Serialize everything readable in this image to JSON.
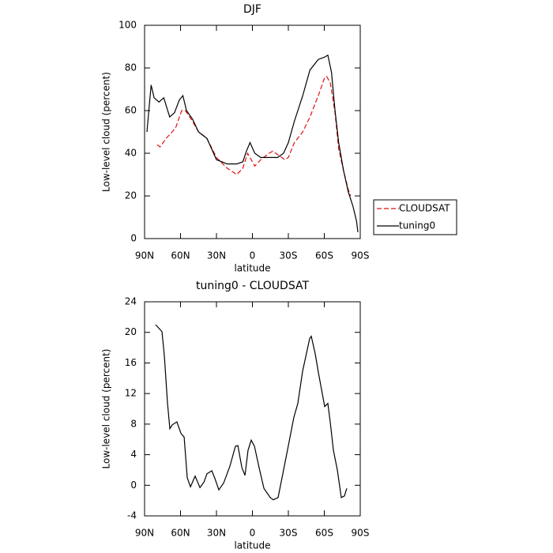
{
  "chart_data": [
    {
      "type": "line",
      "title": "DJF",
      "xlabel": "latitude",
      "ylabel": "Low-level cloud (percent)",
      "xlim": [
        90,
        -90
      ],
      "xticks": [
        {
          "value": 90,
          "label": "90N"
        },
        {
          "value": 60,
          "label": "60N"
        },
        {
          "value": 30,
          "label": "30N"
        },
        0,
        {
          "value": -30,
          "label": "30S"
        },
        {
          "value": -60,
          "label": "60S"
        },
        {
          "value": -90,
          "label": "90S"
        }
      ],
      "ylim": [
        0,
        100
      ],
      "yticks": [
        0,
        20,
        40,
        60,
        80,
        100
      ],
      "legend": "outside-right",
      "series": [
        {
          "name": "CLOUDSAT",
          "color": "#e01010",
          "dashed": true,
          "x": [
            79.5,
            77,
            72,
            67,
            64,
            59,
            56,
            50,
            45,
            38,
            30,
            21,
            13,
            8,
            4,
            1,
            -2,
            -7,
            -14,
            -17,
            -22,
            -27,
            -30,
            -35,
            -42,
            -48,
            -55,
            -60,
            -62,
            -65,
            -69,
            -72,
            -76,
            -80,
            -82
          ],
          "values": [
            44,
            43,
            47,
            50,
            52,
            60,
            60,
            55,
            50,
            47,
            38,
            33,
            30,
            33,
            40,
            37,
            34,
            37,
            40,
            41,
            39,
            37,
            38,
            45,
            50,
            57,
            67,
            75,
            76,
            73,
            59,
            42,
            32,
            23,
            20
          ]
        },
        {
          "name": "tuning0",
          "color": "#000000",
          "dashed": false,
          "x": [
            88,
            84.5,
            82,
            78,
            74,
            69,
            65,
            61,
            58,
            55,
            50,
            45,
            38,
            30,
            21,
            13,
            8,
            5,
            2,
            -2,
            -7,
            -14,
            -21,
            -26,
            -30,
            -35,
            -42,
            -48,
            -55,
            -60,
            -63,
            -66,
            -69,
            -72,
            -76,
            -80,
            -84,
            -87,
            -88
          ],
          "values": [
            50,
            72,
            66,
            64,
            66,
            57,
            59,
            65,
            67,
            60,
            56,
            50,
            47,
            37,
            35,
            35,
            36,
            41,
            45,
            40,
            38,
            38,
            38,
            40,
            45,
            55,
            67,
            79,
            84,
            85,
            86,
            78,
            60,
            45,
            32,
            22,
            15,
            8,
            3
          ]
        }
      ]
    },
    {
      "type": "line",
      "title": "tuning0 - CLOUDSAT",
      "xlabel": "latitude",
      "ylabel": "Low-level cloud (percent)",
      "xlim": [
        90,
        -90
      ],
      "xticks": [
        {
          "value": 90,
          "label": "90N"
        },
        {
          "value": 60,
          "label": "60N"
        },
        {
          "value": 30,
          "label": "30N"
        },
        0,
        {
          "value": -30,
          "label": "30S"
        },
        {
          "value": -60,
          "label": "60S"
        },
        {
          "value": -90,
          "label": "90S"
        }
      ],
      "ylim": [
        -4,
        24
      ],
      "yticks": [
        -4,
        0,
        4,
        8,
        12,
        16,
        20,
        24
      ],
      "color": "#000000",
      "x": [
        80.8,
        75.5,
        73.5,
        70.9,
        68.9,
        66.9,
        63.0,
        59.7,
        57.0,
        54.4,
        51.7,
        47.8,
        43.8,
        40.5,
        37.9,
        33.9,
        31.3,
        28.0,
        24.0,
        18.8,
        14.2,
        12.1,
        8.8,
        6.2,
        3.6,
        1.0,
        -1.7,
        -5.6,
        -9.6,
        -14.9,
        -17.5,
        -21.4,
        -25.4,
        -29.3,
        -34.6,
        -37.9,
        -41.9,
        -47.8,
        -49.1,
        -52.4,
        -55.1,
        -60.3,
        -63.0,
        -65.0,
        -67.6,
        -70.9,
        -74.2,
        -76.8,
        -78.8
      ],
      "values": [
        21.0,
        20.1,
        17,
        10.8,
        7.4,
        7.9,
        8.3,
        6.8,
        6.3,
        1.0,
        -0.2,
        1.2,
        -0.3,
        0.4,
        1.5,
        1.9,
        0.9,
        -0.6,
        0.3,
        2.5,
        5.1,
        5.2,
        2.3,
        1.3,
        4.6,
        5.9,
        5.1,
        2.3,
        -0.4,
        -1.6,
        -1.9,
        -1.6,
        1.5,
        4.6,
        8.9,
        10.7,
        14.9,
        19.2,
        19.5,
        17.2,
        14.7,
        10.3,
        10.7,
        8.2,
        4.6,
        2.0,
        -1.6,
        -1.4,
        -0.4
      ]
    }
  ]
}
